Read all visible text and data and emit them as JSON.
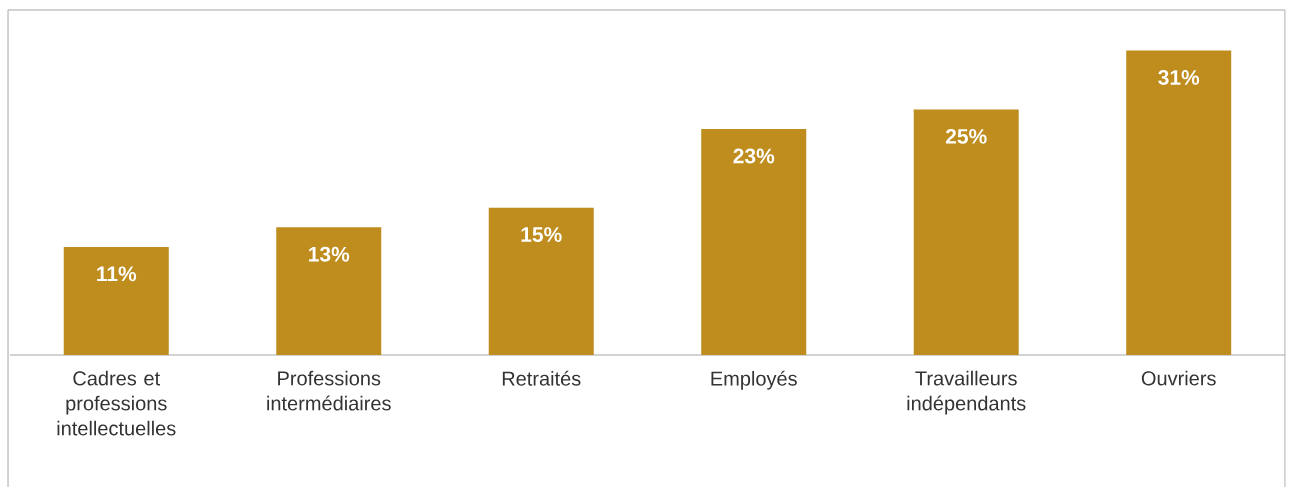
{
  "chart_data": {
    "type": "bar",
    "categories": [
      "Cadres et professions intellectuelles",
      "Professions intermédiaires",
      "Retraités",
      "Employés",
      "Travailleurs indépendants",
      "Ouvriers"
    ],
    "values": [
      11,
      13,
      15,
      23,
      25,
      31
    ],
    "value_labels": [
      "11%",
      "13%",
      "15%",
      "23%",
      "25%",
      "31%"
    ],
    "color": "#bf8c1e"
  }
}
